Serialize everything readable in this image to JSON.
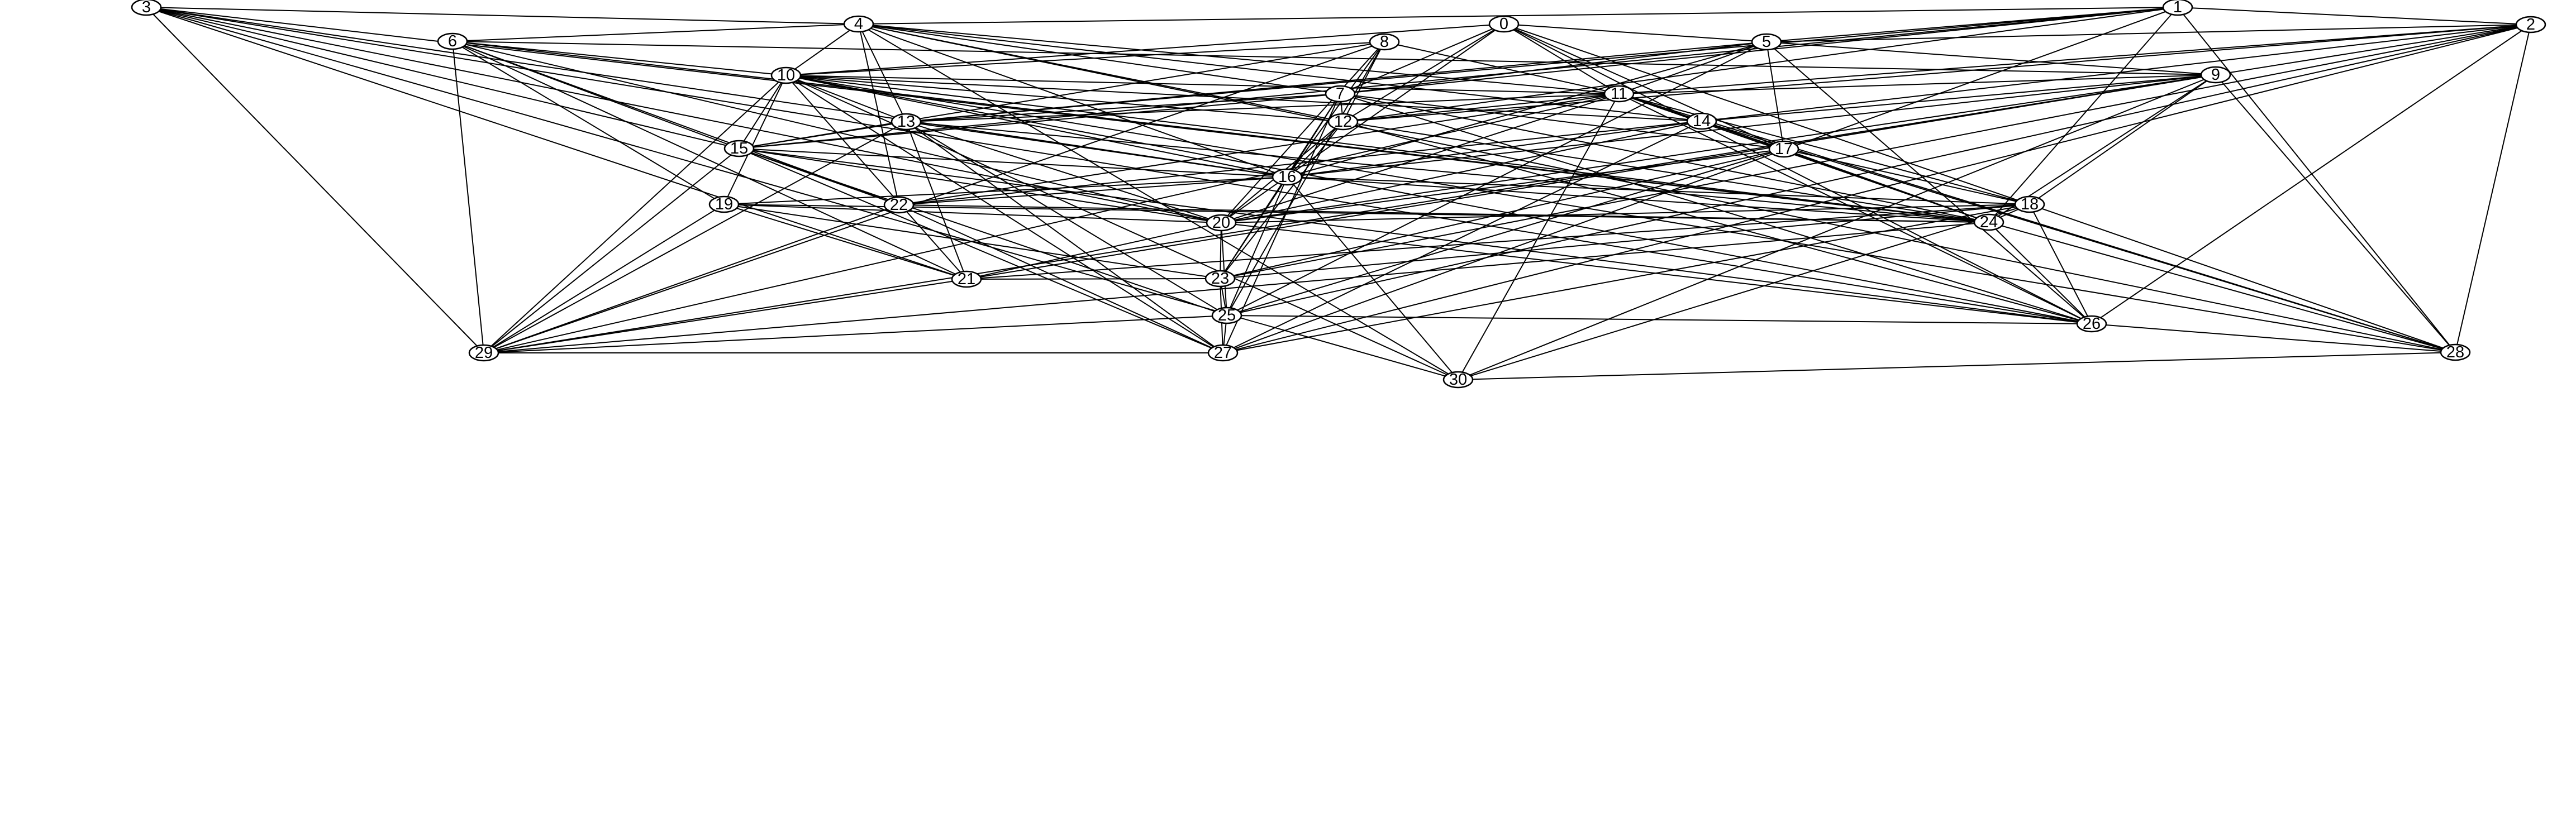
{
  "graph": {
    "nodes": [
      {
        "id": "0",
        "label": "0"
      },
      {
        "id": "1",
        "label": "1"
      },
      {
        "id": "2",
        "label": "2"
      },
      {
        "id": "3",
        "label": "3"
      },
      {
        "id": "4",
        "label": "4"
      },
      {
        "id": "5",
        "label": "5"
      },
      {
        "id": "6",
        "label": "6"
      },
      {
        "id": "7",
        "label": "7"
      },
      {
        "id": "8",
        "label": "8"
      },
      {
        "id": "9",
        "label": "9"
      },
      {
        "id": "10",
        "label": "10"
      },
      {
        "id": "11",
        "label": "11"
      },
      {
        "id": "12",
        "label": "12"
      },
      {
        "id": "13",
        "label": "13"
      },
      {
        "id": "14",
        "label": "14"
      },
      {
        "id": "15",
        "label": "15"
      },
      {
        "id": "16",
        "label": "16"
      },
      {
        "id": "17",
        "label": "17"
      },
      {
        "id": "18",
        "label": "18"
      },
      {
        "id": "19",
        "label": "19"
      },
      {
        "id": "20",
        "label": "20"
      },
      {
        "id": "21",
        "label": "21"
      },
      {
        "id": "22",
        "label": "22"
      },
      {
        "id": "23",
        "label": "23"
      },
      {
        "id": "24",
        "label": "24"
      },
      {
        "id": "25",
        "label": "25"
      },
      {
        "id": "26",
        "label": "26"
      },
      {
        "id": "27",
        "label": "27"
      },
      {
        "id": "28",
        "label": "28"
      },
      {
        "id": "29",
        "label": "29"
      },
      {
        "id": "30",
        "label": "30"
      }
    ],
    "edges": [
      [
        "1",
        "2"
      ],
      [
        "1",
        "4"
      ],
      [
        "1",
        "5"
      ],
      [
        "1",
        "7"
      ],
      [
        "1",
        "12"
      ],
      [
        "1",
        "13"
      ],
      [
        "1",
        "15"
      ],
      [
        "1",
        "24"
      ],
      [
        "1",
        "27"
      ],
      [
        "1",
        "28"
      ],
      [
        "0",
        "5"
      ],
      [
        "0",
        "7"
      ],
      [
        "0",
        "10"
      ],
      [
        "0",
        "11"
      ],
      [
        "0",
        "12"
      ],
      [
        "0",
        "17"
      ],
      [
        "0",
        "18"
      ],
      [
        "0",
        "20"
      ],
      [
        "0",
        "26"
      ],
      [
        "2",
        "5"
      ],
      [
        "2",
        "9"
      ],
      [
        "2",
        "11"
      ],
      [
        "2",
        "12"
      ],
      [
        "2",
        "14"
      ],
      [
        "2",
        "23"
      ],
      [
        "2",
        "25"
      ],
      [
        "2",
        "26"
      ],
      [
        "2",
        "27"
      ],
      [
        "2",
        "28"
      ],
      [
        "3",
        "4"
      ],
      [
        "3",
        "15"
      ],
      [
        "3",
        "16"
      ],
      [
        "3",
        "20"
      ],
      [
        "3",
        "21"
      ],
      [
        "3",
        "24"
      ],
      [
        "3",
        "26"
      ],
      [
        "3",
        "29"
      ],
      [
        "3",
        "30"
      ],
      [
        "4",
        "6"
      ],
      [
        "4",
        "7"
      ],
      [
        "4",
        "10"
      ],
      [
        "4",
        "11"
      ],
      [
        "4",
        "12"
      ],
      [
        "4",
        "13"
      ],
      [
        "4",
        "14"
      ],
      [
        "4",
        "16"
      ],
      [
        "4",
        "22"
      ],
      [
        "4",
        "28"
      ],
      [
        "4",
        "30"
      ],
      [
        "5",
        "7"
      ],
      [
        "5",
        "9"
      ],
      [
        "5",
        "11"
      ],
      [
        "5",
        "13"
      ],
      [
        "5",
        "16"
      ],
      [
        "5",
        "17"
      ],
      [
        "5",
        "25"
      ],
      [
        "5",
        "26"
      ],
      [
        "6",
        "9"
      ],
      [
        "6",
        "10"
      ],
      [
        "6",
        "15"
      ],
      [
        "6",
        "19"
      ],
      [
        "6",
        "20"
      ],
      [
        "6",
        "21"
      ],
      [
        "6",
        "22"
      ],
      [
        "6",
        "24"
      ],
      [
        "6",
        "29"
      ],
      [
        "7",
        "12"
      ],
      [
        "7",
        "13"
      ],
      [
        "7",
        "15"
      ],
      [
        "7",
        "16"
      ],
      [
        "7",
        "17"
      ],
      [
        "7",
        "23"
      ],
      [
        "7",
        "24"
      ],
      [
        "7",
        "26"
      ],
      [
        "7",
        "27"
      ],
      [
        "8",
        "10"
      ],
      [
        "8",
        "11"
      ],
      [
        "8",
        "12"
      ],
      [
        "8",
        "15"
      ],
      [
        "8",
        "16"
      ],
      [
        "8",
        "20"
      ],
      [
        "8",
        "25"
      ],
      [
        "8",
        "29"
      ],
      [
        "9",
        "11"
      ],
      [
        "9",
        "14"
      ],
      [
        "9",
        "16"
      ],
      [
        "9",
        "18"
      ],
      [
        "9",
        "20"
      ],
      [
        "9",
        "21"
      ],
      [
        "9",
        "24"
      ],
      [
        "9",
        "28"
      ],
      [
        "9",
        "29"
      ],
      [
        "9",
        "30"
      ],
      [
        "10",
        "11"
      ],
      [
        "10",
        "12"
      ],
      [
        "10",
        "13"
      ],
      [
        "10",
        "14"
      ],
      [
        "10",
        "15"
      ],
      [
        "10",
        "16"
      ],
      [
        "10",
        "19"
      ],
      [
        "10",
        "21"
      ],
      [
        "10",
        "24"
      ],
      [
        "10",
        "26"
      ],
      [
        "10",
        "27"
      ],
      [
        "10",
        "28"
      ],
      [
        "10",
        "29"
      ],
      [
        "10",
        "30"
      ],
      [
        "11",
        "12"
      ],
      [
        "11",
        "13"
      ],
      [
        "11",
        "14"
      ],
      [
        "11",
        "17"
      ],
      [
        "11",
        "18"
      ],
      [
        "11",
        "20"
      ],
      [
        "11",
        "22"
      ],
      [
        "11",
        "24"
      ],
      [
        "11",
        "26"
      ],
      [
        "11",
        "28"
      ],
      [
        "11",
        "29"
      ],
      [
        "11",
        "30"
      ],
      [
        "12",
        "16"
      ],
      [
        "12",
        "20"
      ],
      [
        "12",
        "23"
      ],
      [
        "12",
        "24"
      ],
      [
        "12",
        "26"
      ],
      [
        "13",
        "15"
      ],
      [
        "13",
        "16"
      ],
      [
        "13",
        "20"
      ],
      [
        "13",
        "21"
      ],
      [
        "13",
        "24"
      ],
      [
        "13",
        "25"
      ],
      [
        "13",
        "27"
      ],
      [
        "13",
        "29"
      ],
      [
        "14",
        "16"
      ],
      [
        "14",
        "17"
      ],
      [
        "14",
        "20"
      ],
      [
        "14",
        "22"
      ],
      [
        "14",
        "24"
      ],
      [
        "14",
        "27"
      ],
      [
        "14",
        "28"
      ],
      [
        "15",
        "16"
      ],
      [
        "15",
        "20"
      ],
      [
        "15",
        "22"
      ],
      [
        "15",
        "25"
      ],
      [
        "15",
        "26"
      ],
      [
        "15",
        "27"
      ],
      [
        "15",
        "29"
      ],
      [
        "16",
        "18"
      ],
      [
        "16",
        "19"
      ],
      [
        "16",
        "22"
      ],
      [
        "16",
        "23"
      ],
      [
        "16",
        "24"
      ],
      [
        "16",
        "25"
      ],
      [
        "16",
        "30"
      ],
      [
        "17",
        "18"
      ],
      [
        "17",
        "20"
      ],
      [
        "17",
        "23"
      ],
      [
        "17",
        "24"
      ],
      [
        "17",
        "25"
      ],
      [
        "18",
        "20"
      ],
      [
        "18",
        "21"
      ],
      [
        "18",
        "23"
      ],
      [
        "18",
        "24"
      ],
      [
        "18",
        "26"
      ],
      [
        "18",
        "27"
      ],
      [
        "18",
        "28"
      ],
      [
        "18",
        "30"
      ],
      [
        "19",
        "20"
      ],
      [
        "19",
        "21"
      ],
      [
        "19",
        "23"
      ],
      [
        "19",
        "24"
      ],
      [
        "19",
        "29"
      ],
      [
        "20",
        "21"
      ],
      [
        "20",
        "23"
      ],
      [
        "20",
        "25"
      ],
      [
        "20",
        "26"
      ],
      [
        "21",
        "23"
      ],
      [
        "21",
        "29"
      ],
      [
        "22",
        "24"
      ],
      [
        "22",
        "27"
      ],
      [
        "22",
        "29"
      ],
      [
        "23",
        "25"
      ],
      [
        "23",
        "27"
      ],
      [
        "24",
        "26"
      ],
      [
        "24",
        "28"
      ],
      [
        "24",
        "29"
      ],
      [
        "25",
        "26"
      ],
      [
        "25",
        "27"
      ],
      [
        "25",
        "29"
      ],
      [
        "26",
        "28"
      ],
      [
        "27",
        "29"
      ],
      [
        "28",
        "30"
      ]
    ]
  }
}
